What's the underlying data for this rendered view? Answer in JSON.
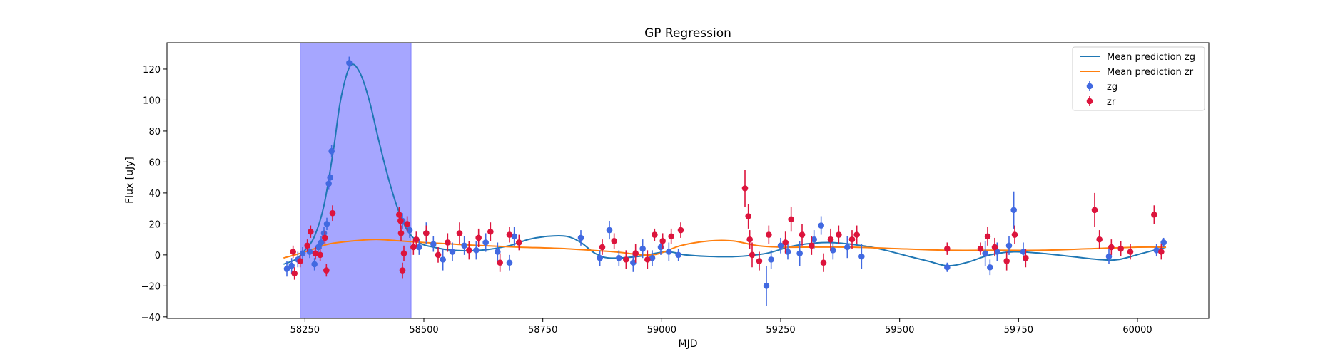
{
  "chart_data": {
    "type": "scatter",
    "title": "GP Regression",
    "xlabel": "MJD",
    "ylabel": "Flux [uJy]",
    "xlim": [
      57960,
      60150
    ],
    "ylim": [
      -41,
      137
    ],
    "xticks": [
      58250,
      58500,
      58750,
      59000,
      59250,
      59500,
      59750,
      60000
    ],
    "yticks": [
      -40,
      -20,
      0,
      20,
      40,
      60,
      80,
      100,
      120
    ],
    "grid": false,
    "legend_position": "top-right",
    "shaded_region": {
      "x_start": 58240,
      "x_end": 58473,
      "color": "#a6a6ff"
    },
    "series": [
      {
        "name": "Mean prediction zg",
        "kind": "line",
        "color": "#1f77b4",
        "x": [
          58205,
          58230,
          58250,
          58270,
          58290,
          58310,
          58325,
          58345,
          58365,
          58385,
          58405,
          58425,
          58445,
          58465,
          58490,
          58520,
          58560,
          58620,
          58680,
          58720,
          58760,
          58800,
          58830,
          58860,
          58890,
          58950,
          59010,
          59050,
          59100,
          59160,
          59220,
          59280,
          59350,
          59420,
          59470,
          59520,
          59560,
          59600,
          59640,
          59690,
          59740,
          59800,
          59860,
          59920,
          59960,
          60010,
          60060
        ],
        "y": [
          -6,
          -3,
          3,
          12,
          32,
          68,
          100,
          122,
          118,
          100,
          74,
          50,
          30,
          16,
          8,
          5,
          3,
          3,
          6,
          10,
          12,
          12,
          8,
          1,
          -2,
          -1,
          2,
          0,
          -1,
          -1,
          1,
          6,
          8,
          6,
          3,
          -1,
          -4,
          -7,
          -5,
          0,
          2,
          1,
          -1,
          -3,
          -3,
          1,
          5
        ]
      },
      {
        "name": "Mean prediction zr",
        "kind": "line",
        "color": "#ff7f0e",
        "x": [
          58205,
          58240,
          58270,
          58300,
          58350,
          58400,
          58450,
          58500,
          58560,
          58620,
          58700,
          58800,
          58900,
          58980,
          59040,
          59100,
          59150,
          59200,
          59250,
          59300,
          59400,
          59500,
          59600,
          59700,
          59800,
          59900,
          60000,
          60060
        ],
        "y": [
          -2,
          1,
          4,
          7,
          9,
          10,
          9,
          8,
          7,
          6,
          5,
          4,
          2,
          0,
          6,
          9,
          9,
          6,
          5,
          5,
          5,
          4,
          3,
          3,
          3,
          4,
          5,
          5
        ]
      },
      {
        "name": "zg",
        "kind": "errorbar",
        "color": "#4169e1",
        "points": [
          [
            58212,
            -9,
            5
          ],
          [
            58222,
            -7,
            5
          ],
          [
            58235,
            -3,
            5
          ],
          [
            58245,
            1,
            4
          ],
          [
            58260,
            2,
            4
          ],
          [
            58270,
            -6,
            4
          ],
          [
            58278,
            5,
            4
          ],
          [
            58284,
            8,
            4
          ],
          [
            58290,
            14,
            4
          ],
          [
            58296,
            20,
            4
          ],
          [
            58300,
            46,
            4
          ],
          [
            58303,
            50,
            4
          ],
          [
            58306,
            67,
            4
          ],
          [
            58343,
            124,
            4
          ],
          [
            58455,
            22,
            5
          ],
          [
            58470,
            16,
            5
          ],
          [
            58490,
            5,
            5
          ],
          [
            58505,
            14,
            7
          ],
          [
            58520,
            7,
            5
          ],
          [
            58540,
            -3,
            7
          ],
          [
            58560,
            2,
            6
          ],
          [
            58585,
            6,
            6
          ],
          [
            58610,
            3,
            6
          ],
          [
            58630,
            8,
            6
          ],
          [
            58655,
            2,
            6
          ],
          [
            58680,
            -5,
            5
          ],
          [
            58690,
            12,
            6
          ],
          [
            58830,
            11,
            5
          ],
          [
            58870,
            -2,
            5
          ],
          [
            58890,
            16,
            6
          ],
          [
            58910,
            -2,
            5
          ],
          [
            58940,
            -5,
            6
          ],
          [
            58960,
            4,
            6
          ],
          [
            58980,
            -2,
            5
          ],
          [
            58998,
            5,
            5
          ],
          [
            59015,
            2,
            6
          ],
          [
            59035,
            0,
            4
          ],
          [
            59220,
            -20,
            13
          ],
          [
            59230,
            -3,
            6
          ],
          [
            59250,
            6,
            5
          ],
          [
            59265,
            2,
            5
          ],
          [
            59290,
            1,
            8
          ],
          [
            59320,
            10,
            6
          ],
          [
            59335,
            19,
            6
          ],
          [
            59360,
            3,
            6
          ],
          [
            59390,
            5,
            7
          ],
          [
            59420,
            -1,
            8
          ],
          [
            59600,
            -8,
            3
          ],
          [
            59680,
            1,
            8
          ],
          [
            59690,
            -8,
            5
          ],
          [
            59705,
            2,
            6
          ],
          [
            59730,
            6,
            6
          ],
          [
            59740,
            29,
            12
          ],
          [
            59760,
            2,
            6
          ],
          [
            59940,
            -1,
            5
          ],
          [
            60040,
            3,
            4
          ],
          [
            60055,
            8,
            3
          ]
        ]
      },
      {
        "name": "zr",
        "kind": "errorbar",
        "color": "#dc143c",
        "points": [
          [
            58225,
            2,
            4
          ],
          [
            58228,
            -12,
            4
          ],
          [
            58240,
            -4,
            4
          ],
          [
            58255,
            6,
            4
          ],
          [
            58262,
            15,
            4
          ],
          [
            58272,
            1,
            4
          ],
          [
            58282,
            0,
            4
          ],
          [
            58292,
            11,
            4
          ],
          [
            58295,
            -10,
            4
          ],
          [
            58308,
            27,
            5
          ],
          [
            58448,
            26,
            5
          ],
          [
            58451,
            22,
            5
          ],
          [
            58452,
            14,
            5
          ],
          [
            58455,
            -10,
            5
          ],
          [
            58458,
            1,
            5
          ],
          [
            58465,
            20,
            5
          ],
          [
            58478,
            5,
            5
          ],
          [
            58484,
            10,
            5
          ],
          [
            58505,
            14,
            5
          ],
          [
            58530,
            0,
            5
          ],
          [
            58550,
            8,
            6
          ],
          [
            58575,
            14,
            7
          ],
          [
            58595,
            3,
            6
          ],
          [
            58615,
            11,
            6
          ],
          [
            58640,
            15,
            6
          ],
          [
            58660,
            -5,
            6
          ],
          [
            58680,
            13,
            5
          ],
          [
            58700,
            8,
            5
          ],
          [
            58875,
            5,
            5
          ],
          [
            58900,
            9,
            5
          ],
          [
            58925,
            -3,
            6
          ],
          [
            58945,
            1,
            6
          ],
          [
            58970,
            -3,
            6
          ],
          [
            58985,
            13,
            4
          ],
          [
            59002,
            9,
            5
          ],
          [
            59020,
            12,
            5
          ],
          [
            59040,
            16,
            5
          ],
          [
            59175,
            43,
            12
          ],
          [
            59182,
            25,
            8
          ],
          [
            59185,
            10,
            6
          ],
          [
            59190,
            0,
            8
          ],
          [
            59205,
            -4,
            6
          ],
          [
            59225,
            13,
            6
          ],
          [
            59260,
            8,
            7
          ],
          [
            59272,
            23,
            8
          ],
          [
            59295,
            13,
            7
          ],
          [
            59315,
            6,
            6
          ],
          [
            59340,
            -5,
            6
          ],
          [
            59355,
            10,
            7
          ],
          [
            59372,
            13,
            6
          ],
          [
            59400,
            10,
            6
          ],
          [
            59410,
            13,
            6
          ],
          [
            59600,
            4,
            4
          ],
          [
            59670,
            4,
            4
          ],
          [
            59685,
            12,
            6
          ],
          [
            59700,
            5,
            6
          ],
          [
            59725,
            -4,
            6
          ],
          [
            59742,
            13,
            6
          ],
          [
            59765,
            -2,
            6
          ],
          [
            59910,
            29,
            11
          ],
          [
            59920,
            10,
            6
          ],
          [
            59945,
            5,
            5
          ],
          [
            59965,
            4,
            5
          ],
          [
            59985,
            2,
            5
          ],
          [
            60035,
            26,
            6
          ],
          [
            60050,
            2,
            5
          ]
        ]
      }
    ]
  }
}
